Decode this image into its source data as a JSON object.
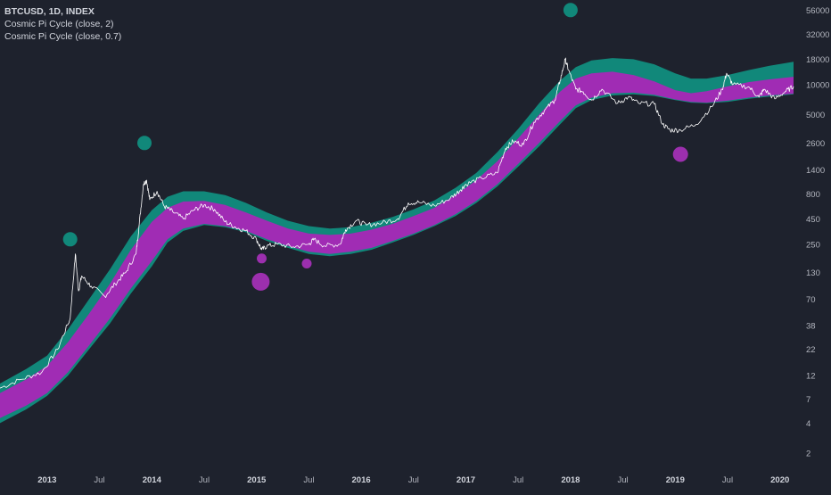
{
  "legend": {
    "symbol_line": "BTCUSD, 1D, INDEX",
    "indicator_1": "Cosmic Pi Cycle (close, 2)",
    "indicator_2": "Cosmic Pi Cycle (close, 0.7)"
  },
  "colors": {
    "background": "#1e222d",
    "teal_band": "#11887a",
    "purple_band": "#a02cb4",
    "price_line": "#ffffff",
    "teal_marker": "#11887a",
    "purple_marker": "#9c2fae"
  },
  "chart_data": {
    "type": "line",
    "y_scale": "log",
    "ylim": [
      1.5,
      60000
    ],
    "y_ticks": [
      "2",
      "4",
      "7",
      "12",
      "22",
      "38",
      "70",
      "130",
      "250",
      "450",
      "800",
      "1400",
      "2600",
      "5000",
      "10000",
      "18000",
      "32000",
      "56000"
    ],
    "x_ticks": [
      {
        "label": "2013",
        "t": 2013.0,
        "year": true
      },
      {
        "label": "Jul",
        "t": 2013.5,
        "year": false
      },
      {
        "label": "2014",
        "t": 2014.0,
        "year": true
      },
      {
        "label": "Jul",
        "t": 2014.5,
        "year": false
      },
      {
        "label": "2015",
        "t": 2015.0,
        "year": true
      },
      {
        "label": "Jul",
        "t": 2015.5,
        "year": false
      },
      {
        "label": "2016",
        "t": 2016.0,
        "year": true
      },
      {
        "label": "Jul",
        "t": 2016.5,
        "year": false
      },
      {
        "label": "2017",
        "t": 2017.0,
        "year": true
      },
      {
        "label": "Jul",
        "t": 2017.5,
        "year": false
      },
      {
        "label": "2018",
        "t": 2018.0,
        "year": true
      },
      {
        "label": "Jul",
        "t": 2018.5,
        "year": false
      },
      {
        "label": "2019",
        "t": 2019.0,
        "year": true
      },
      {
        "label": "Jul",
        "t": 2019.5,
        "year": false
      },
      {
        "label": "2020",
        "t": 2020.0,
        "year": true
      }
    ],
    "xlim": [
      2012.55,
      2020.13
    ],
    "series": [
      {
        "name": "BTCUSD",
        "kind": "price",
        "points": [
          [
            2012.55,
            9
          ],
          [
            2012.75,
            11
          ],
          [
            2012.95,
            13
          ],
          [
            2013.1,
            22
          ],
          [
            2013.22,
            45
          ],
          [
            2013.27,
            200
          ],
          [
            2013.3,
            85
          ],
          [
            2013.33,
            120
          ],
          [
            2013.42,
            95
          ],
          [
            2013.55,
            75
          ],
          [
            2013.65,
            100
          ],
          [
            2013.75,
            130
          ],
          [
            2013.85,
            200
          ],
          [
            2013.88,
            400
          ],
          [
            2013.92,
            1000
          ],
          [
            2013.95,
            1100
          ],
          [
            2013.98,
            700
          ],
          [
            2014.05,
            850
          ],
          [
            2014.12,
            600
          ],
          [
            2014.2,
            530
          ],
          [
            2014.3,
            450
          ],
          [
            2014.4,
            550
          ],
          [
            2014.5,
            620
          ],
          [
            2014.6,
            560
          ],
          [
            2014.7,
            420
          ],
          [
            2014.8,
            370
          ],
          [
            2014.9,
            340
          ],
          [
            2015.0,
            280
          ],
          [
            2015.05,
            220
          ],
          [
            2015.1,
            240
          ],
          [
            2015.2,
            250
          ],
          [
            2015.35,
            235
          ],
          [
            2015.5,
            250
          ],
          [
            2015.55,
            280
          ],
          [
            2015.65,
            240
          ],
          [
            2015.8,
            250
          ],
          [
            2015.85,
            350
          ],
          [
            2015.95,
            430
          ],
          [
            2016.05,
            390
          ],
          [
            2016.2,
            410
          ],
          [
            2016.35,
            450
          ],
          [
            2016.45,
            650
          ],
          [
            2016.55,
            660
          ],
          [
            2016.7,
            610
          ],
          [
            2016.85,
            720
          ],
          [
            2016.95,
            880
          ],
          [
            2017.0,
            1000
          ],
          [
            2017.15,
            1150
          ],
          [
            2017.3,
            1300
          ],
          [
            2017.38,
            2300
          ],
          [
            2017.45,
            2700
          ],
          [
            2017.55,
            2500
          ],
          [
            2017.65,
            4200
          ],
          [
            2017.75,
            5500
          ],
          [
            2017.85,
            7000
          ],
          [
            2017.9,
            11000
          ],
          [
            2017.95,
            18000
          ],
          [
            2017.98,
            14000
          ],
          [
            2018.05,
            9000
          ],
          [
            2018.12,
            8500
          ],
          [
            2018.2,
            7000
          ],
          [
            2018.3,
            9000
          ],
          [
            2018.45,
            6500
          ],
          [
            2018.55,
            7500
          ],
          [
            2018.65,
            6500
          ],
          [
            2018.8,
            6400
          ],
          [
            2018.88,
            4000
          ],
          [
            2018.95,
            3500
          ],
          [
            2019.05,
            3500
          ],
          [
            2019.2,
            4000
          ],
          [
            2019.35,
            6000
          ],
          [
            2019.45,
            9000
          ],
          [
            2019.49,
            13000
          ],
          [
            2019.55,
            10000
          ],
          [
            2019.7,
            9500
          ],
          [
            2019.8,
            7500
          ],
          [
            2019.85,
            9000
          ],
          [
            2019.95,
            7200
          ],
          [
            2020.05,
            8500
          ],
          [
            2020.13,
            9600
          ]
        ]
      },
      {
        "name": "Cosmic Pi Cycle (close, 2)",
        "kind": "teal-band",
        "points": [
          [
            2012.55,
            10,
            4
          ],
          [
            2012.8,
            14,
            5.5
          ],
          [
            2013.0,
            19,
            7.5
          ],
          [
            2013.2,
            35,
            12
          ],
          [
            2013.4,
            70,
            22
          ],
          [
            2013.6,
            140,
            40
          ],
          [
            2013.8,
            300,
            80
          ],
          [
            2014.0,
            550,
            150
          ],
          [
            2014.15,
            750,
            260
          ],
          [
            2014.3,
            850,
            340
          ],
          [
            2014.5,
            850,
            390
          ],
          [
            2014.7,
            780,
            370
          ],
          [
            2014.9,
            650,
            330
          ],
          [
            2015.1,
            520,
            270
          ],
          [
            2015.3,
            430,
            230
          ],
          [
            2015.5,
            380,
            200
          ],
          [
            2015.7,
            360,
            190
          ],
          [
            2015.9,
            370,
            200
          ],
          [
            2016.1,
            410,
            220
          ],
          [
            2016.3,
            470,
            260
          ],
          [
            2016.5,
            560,
            310
          ],
          [
            2016.7,
            690,
            380
          ],
          [
            2016.9,
            920,
            480
          ],
          [
            2017.1,
            1300,
            650
          ],
          [
            2017.3,
            2100,
            950
          ],
          [
            2017.5,
            3600,
            1500
          ],
          [
            2017.7,
            6500,
            2400
          ],
          [
            2017.9,
            11000,
            4000
          ],
          [
            2018.05,
            15000,
            5800
          ],
          [
            2018.2,
            17500,
            7000
          ],
          [
            2018.4,
            18500,
            7800
          ],
          [
            2018.6,
            18000,
            8000
          ],
          [
            2018.8,
            16000,
            7700
          ],
          [
            2019.0,
            13000,
            7000
          ],
          [
            2019.15,
            11500,
            6600
          ],
          [
            2019.3,
            11500,
            6500
          ],
          [
            2019.5,
            12500,
            6700
          ],
          [
            2019.7,
            14000,
            7200
          ],
          [
            2019.9,
            15500,
            7600
          ],
          [
            2020.13,
            17000,
            8000
          ]
        ]
      },
      {
        "name": "Cosmic Pi Cycle (close, 0.7)",
        "kind": "purple-band",
        "points": [
          [
            2012.55,
            8,
            4.5
          ],
          [
            2012.8,
            11,
            6
          ],
          [
            2013.0,
            15,
            8
          ],
          [
            2013.2,
            26,
            13
          ],
          [
            2013.4,
            50,
            24
          ],
          [
            2013.6,
            100,
            45
          ],
          [
            2013.8,
            220,
            90
          ],
          [
            2014.0,
            420,
            170
          ],
          [
            2014.15,
            580,
            280
          ],
          [
            2014.3,
            670,
            360
          ],
          [
            2014.5,
            680,
            400
          ],
          [
            2014.7,
            620,
            380
          ],
          [
            2014.9,
            520,
            340
          ],
          [
            2015.1,
            430,
            280
          ],
          [
            2015.3,
            360,
            240
          ],
          [
            2015.5,
            320,
            210
          ],
          [
            2015.7,
            310,
            200
          ],
          [
            2015.9,
            320,
            210
          ],
          [
            2016.1,
            350,
            230
          ],
          [
            2016.3,
            400,
            270
          ],
          [
            2016.5,
            480,
            320
          ],
          [
            2016.7,
            580,
            390
          ],
          [
            2016.9,
            780,
            500
          ],
          [
            2017.1,
            1100,
            680
          ],
          [
            2017.3,
            1700,
            1000
          ],
          [
            2017.5,
            2900,
            1600
          ],
          [
            2017.7,
            5000,
            2600
          ],
          [
            2017.9,
            8500,
            4300
          ],
          [
            2018.05,
            11500,
            6200
          ],
          [
            2018.2,
            13000,
            7400
          ],
          [
            2018.4,
            13500,
            8200
          ],
          [
            2018.6,
            12500,
            8300
          ],
          [
            2018.8,
            10800,
            7900
          ],
          [
            2019.0,
            8800,
            7100
          ],
          [
            2019.15,
            8200,
            6700
          ],
          [
            2019.3,
            8600,
            6600
          ],
          [
            2019.5,
            9600,
            6900
          ],
          [
            2019.7,
            10600,
            7400
          ],
          [
            2019.9,
            11300,
            7800
          ],
          [
            2020.13,
            12000,
            8100
          ]
        ]
      }
    ],
    "markers": [
      {
        "t": 2013.22,
        "v": 280,
        "color": "teal",
        "r": 8
      },
      {
        "t": 2013.93,
        "v": 2600,
        "color": "teal",
        "r": 8
      },
      {
        "t": 2018.0,
        "v": 56000,
        "color": "teal",
        "r": 8
      },
      {
        "t": 2015.05,
        "v": 180,
        "color": "purple",
        "r": 5.5
      },
      {
        "t": 2015.04,
        "v": 105,
        "color": "purple",
        "r": 10
      },
      {
        "t": 2015.48,
        "v": 160,
        "color": "purple",
        "r": 5.5
      },
      {
        "t": 2019.05,
        "v": 2000,
        "color": "purple",
        "r": 8.5
      }
    ]
  }
}
